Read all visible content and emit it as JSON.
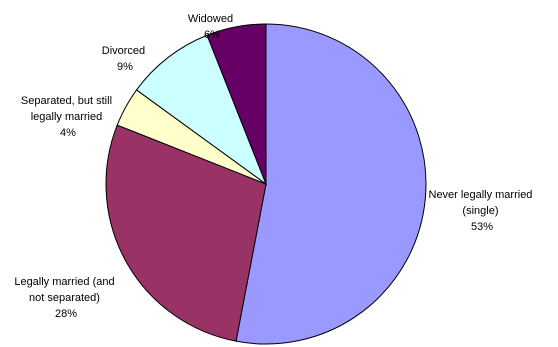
{
  "chart_data": {
    "type": "pie",
    "title": "",
    "slices": [
      {
        "label": "Never legally married (single)",
        "value": 53,
        "display": "53%",
        "color": "#9999ff"
      },
      {
        "label": "Legally married (and not separated)",
        "value": 28,
        "display": "28%",
        "color": "#993366"
      },
      {
        "label": "Separated, but still legally married",
        "value": 4,
        "display": "4%",
        "color": "#ffffcc"
      },
      {
        "label": "Divorced",
        "value": 9,
        "display": "9%",
        "color": "#ccffff"
      },
      {
        "label": "Widowed",
        "value": 6,
        "display": "6%",
        "color": "#660066"
      }
    ],
    "legend": "none"
  }
}
